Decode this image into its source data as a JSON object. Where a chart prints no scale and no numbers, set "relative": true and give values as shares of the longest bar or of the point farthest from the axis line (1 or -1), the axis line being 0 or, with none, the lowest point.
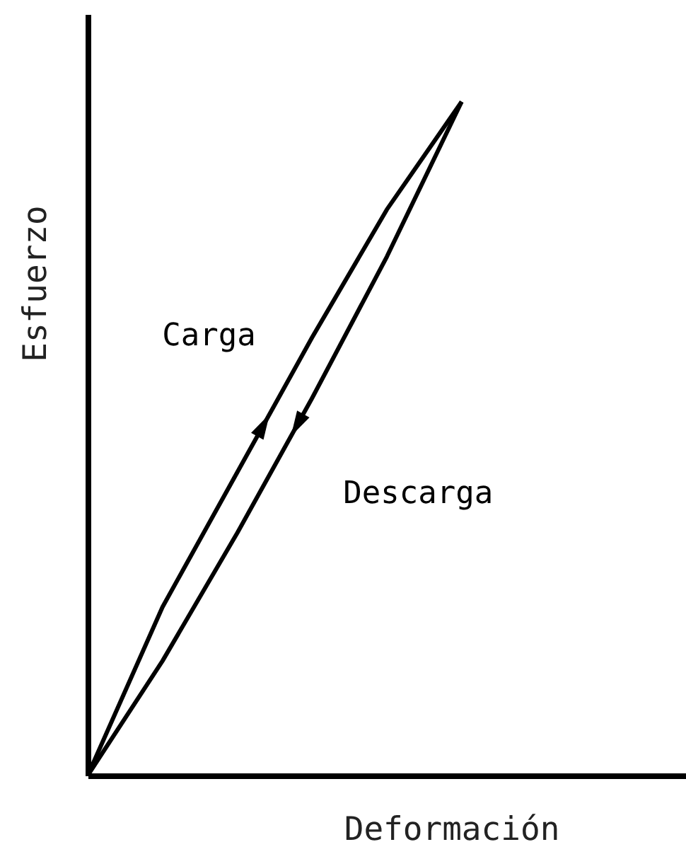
{
  "chart_data": {
    "type": "line",
    "relative": true,
    "xlabel": "Deformación",
    "ylabel": "Esfuerzo",
    "categories": [
      null,
      null,
      null,
      null,
      null,
      null,
      null,
      null,
      null
    ],
    "series": [
      {
        "name": "Carga",
        "color": "#000000",
        "values": [
          0,
          0.25,
          0.45,
          0.65,
          0.84,
          1,
          null,
          null,
          null
        ]
      },
      {
        "name": "Descarga",
        "color": "#000000",
        "values": [
          0,
          0.17,
          0.36,
          0.56,
          0.77,
          1,
          null,
          null,
          null
        ]
      }
    ],
    "grid": false,
    "marker": "none",
    "line_style": "solid"
  }
}
